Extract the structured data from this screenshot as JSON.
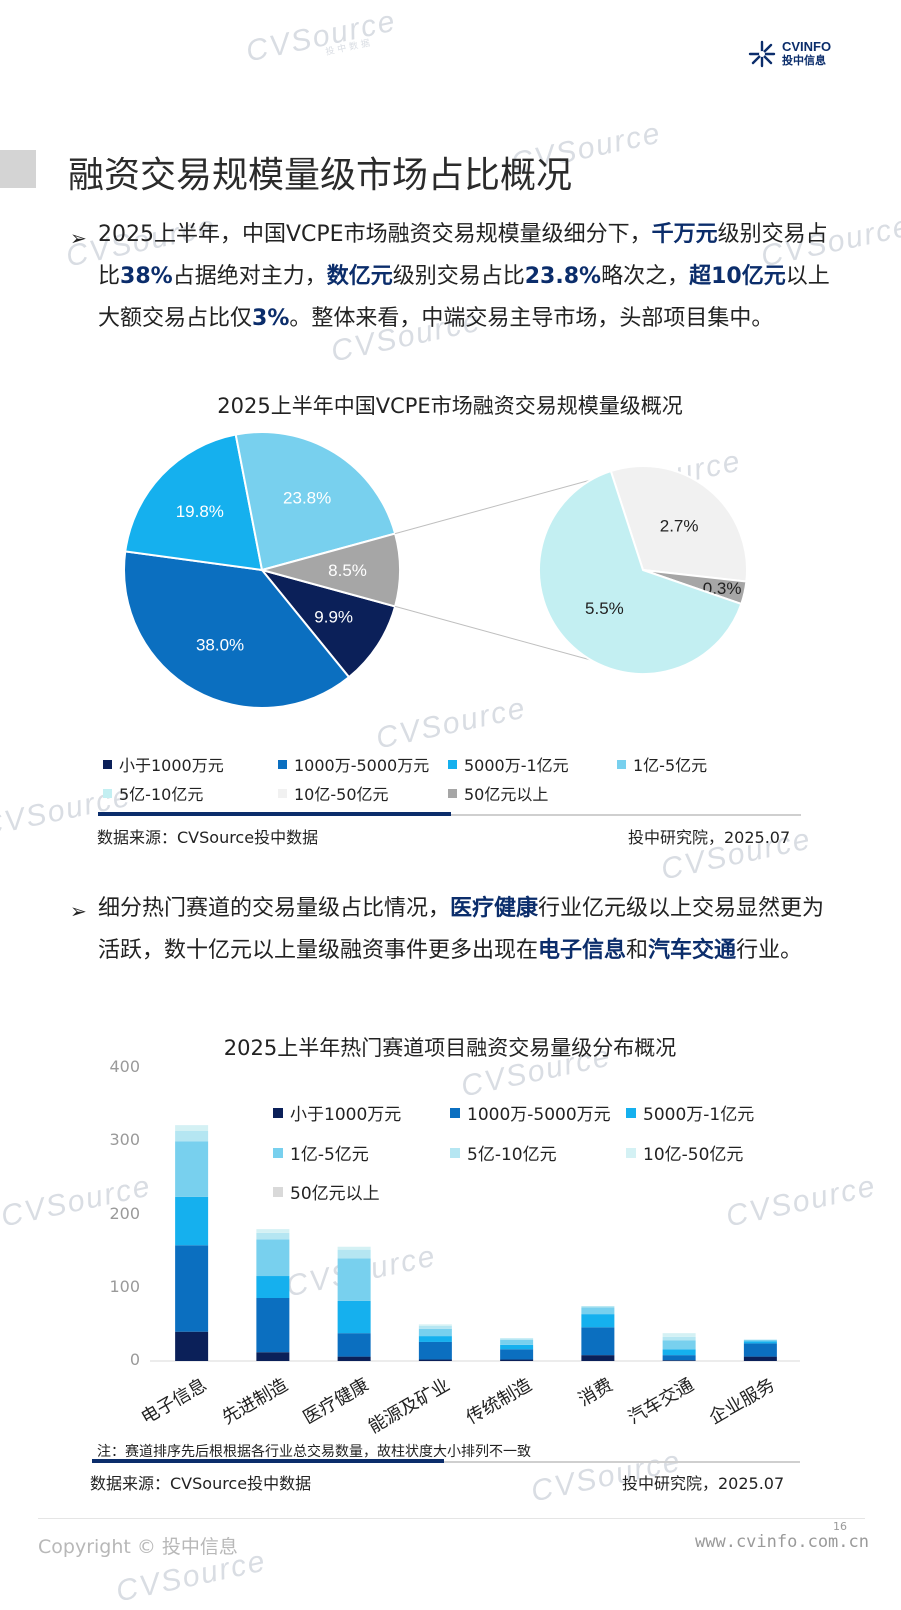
{
  "header": {
    "logo_text_en": "CVINFO",
    "logo_text_cn": "投中信息",
    "watermark": "CVSource",
    "watermark_sub": "投中数据"
  },
  "page_title": "融资交易规模量级市场占比概况",
  "section1": {
    "bullet": "➢",
    "text_parts": [
      {
        "t": "2025上半年，中国VCPE市场融资交易规模量级细分下，",
        "b": false
      },
      {
        "t": "千万元",
        "b": true
      },
      {
        "t": "级别交易占比",
        "b": false
      },
      {
        "t": "38%",
        "b": true
      },
      {
        "t": "占据绝对主力，",
        "b": false
      },
      {
        "t": "数亿元",
        "b": true
      },
      {
        "t": "级别交易占比",
        "b": false
      },
      {
        "t": "23.8%",
        "b": true
      },
      {
        "t": "略次之，",
        "b": false
      },
      {
        "t": "超10亿元",
        "b": true
      },
      {
        "t": "以上大额交易占比仅",
        "b": false
      },
      {
        "t": "3%",
        "b": true
      },
      {
        "t": "。整体来看，中端交易主导市场，头部项目集中。",
        "b": false
      }
    ]
  },
  "section2": {
    "bullet": "➢",
    "text_parts": [
      {
        "t": "细分热门赛道的交易量级占比情况，",
        "b": false
      },
      {
        "t": "医疗健康",
        "b": true
      },
      {
        "t": "行业亿元级以上交易显然更为活跃，数十亿元以上量级融资事件更多出现在",
        "b": false
      },
      {
        "t": "电子信息",
        "b": true
      },
      {
        "t": "和",
        "b": false
      },
      {
        "t": "汽车交通",
        "b": true
      },
      {
        "t": "行业。",
        "b": false
      }
    ]
  },
  "chart_data": [
    {
      "type": "pie",
      "title": "2025上半年中国VCPE市场融资交易规模量级概况",
      "slices": [
        {
          "name": "小于1000万元",
          "value": 9.9,
          "label": "9.9%",
          "color": "#0b2059"
        },
        {
          "name": "1000万-5000万元",
          "value": 38.0,
          "label": "38.0%",
          "color": "#0b6fc0"
        },
        {
          "name": "5000万-1亿元",
          "value": 19.8,
          "label": "19.8%",
          "color": "#15b0ee"
        },
        {
          "name": "1亿-5亿元",
          "value": 23.8,
          "label": "23.8%",
          "color": "#78d0ee"
        },
        {
          "name": "5亿-10亿元",
          "value": 5.5,
          "label": "5.5%",
          "color": "#c3eff2"
        },
        {
          "name": "10亿-50亿元",
          "value": 2.7,
          "label": "2.7%",
          "color": "#f1f1f1"
        },
        {
          "name": "50亿元以上",
          "value": 0.3,
          "label": "0.3%",
          "color": "#a6a6a6"
        }
      ],
      "other_slice_label": "8.5%",
      "other_slice_value": 8.5,
      "legend": [
        "小于1000万元",
        "1000万-5000万元",
        "5000万-1亿元",
        "1亿-5亿元",
        "5亿-10亿元",
        "10亿-50亿元",
        "50亿元以上"
      ],
      "source_left": "数据来源：CVSource投中数据",
      "source_right": "投中研究院，2025.07"
    },
    {
      "type": "bar",
      "stacked": true,
      "title": "2025上半年热门赛道项目融资交易量级分布概况",
      "categories": [
        "电子信息",
        "先进制造",
        "医疗健康",
        "能源及矿业",
        "传统制造",
        "消费",
        "汽车交通",
        "企业服务"
      ],
      "ylim": [
        0,
        400
      ],
      "yticks": [
        "0",
        "100",
        "200",
        "300",
        "400"
      ],
      "series": [
        {
          "name": "小于1000万元",
          "color": "#0b2059",
          "values": [
            40,
            12,
            6,
            2,
            2,
            8,
            1,
            6
          ]
        },
        {
          "name": "1000万-5000万元",
          "color": "#0b6fc0",
          "values": [
            118,
            74,
            32,
            24,
            14,
            38,
            7,
            18
          ]
        },
        {
          "name": "5000万-1亿元",
          "color": "#15b0ee",
          "values": [
            66,
            30,
            44,
            8,
            6,
            18,
            8,
            3
          ]
        },
        {
          "name": "1亿-5亿元",
          "color": "#78d0ee",
          "values": [
            76,
            50,
            58,
            10,
            7,
            9,
            12,
            2
          ]
        },
        {
          "name": "5亿-10亿元",
          "color": "#b5e6f2",
          "values": [
            14,
            9,
            12,
            4,
            2,
            2,
            5,
            0
          ]
        },
        {
          "name": "10亿-50亿元",
          "color": "#d4f1f4",
          "values": [
            8,
            5,
            4,
            2,
            0,
            0,
            5,
            0
          ]
        },
        {
          "name": "50亿元以上",
          "color": "#d9d9d9",
          "values": [
            0,
            0,
            0,
            0,
            0,
            0,
            0,
            0
          ]
        }
      ],
      "note": "注：赛道排序先后根根据各行业总交易数量，故柱状度大小排列不一致",
      "source_left": "数据来源：CVSource投中数据",
      "source_right": "投中研究院，2025.07"
    }
  ],
  "footer": {
    "copyright": "Copyright © 投中信息",
    "url": "www.cvinfo.com.cn",
    "page_number": "16"
  }
}
